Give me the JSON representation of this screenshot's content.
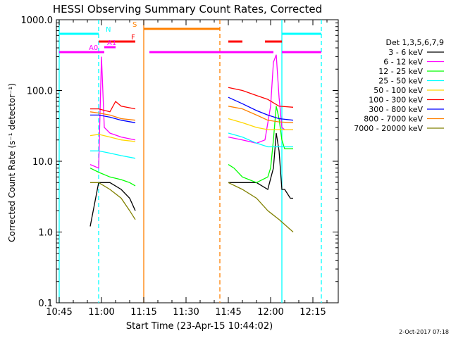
{
  "chart_data": {
    "type": "line",
    "title": "HESSI Observing Summary Count Rates, Corrected",
    "xlabel": "Start Time (23-Apr-15 10:44:02)",
    "ylabel": "Corrected Count Rate (s⁻¹ detector⁻¹)",
    "y_scale": "log",
    "ylim": [
      0.1,
      1000
    ],
    "xlim": [
      "10:44",
      "12:24"
    ],
    "x_ticks": [
      "10:45",
      "11:00",
      "11:15",
      "11:30",
      "11:45",
      "12:00",
      "12:15"
    ],
    "y_ticks": [
      "0.1",
      "1.0",
      "10.0",
      "100.0",
      "1000.0"
    ],
    "footer": "2-Oct-2017 07:18",
    "legend_title": "Det 1,3,5,6,7,9",
    "legend_position": "right",
    "series": [
      {
        "name": "3 - 6 keV",
        "color": "#000000",
        "x": [
          "10:56",
          "10:59",
          "11:03",
          "11:07",
          "11:10",
          "11:12",
          "11:45",
          "11:50",
          "11:55",
          "11:59",
          "12:01",
          "12:02",
          "12:03",
          "12:04",
          "12:05",
          "12:07",
          "12:08"
        ],
        "values": [
          1.2,
          5,
          5,
          4,
          3,
          2,
          5,
          5,
          5,
          4,
          8,
          25,
          14,
          4,
          4,
          3,
          3
        ]
      },
      {
        "name": "6 - 12 keV",
        "color": "#ff00ff",
        "x": [
          "10:56",
          "10:59",
          "11:00",
          "11:01",
          "11:03",
          "11:07",
          "11:12",
          "11:45",
          "11:50",
          "11:55",
          "11:58",
          "12:00",
          "12:01",
          "12:02",
          "12:03",
          "12:04",
          "12:05",
          "12:07",
          "12:08"
        ],
        "values": [
          9,
          8,
          300,
          30,
          25,
          22,
          20,
          22,
          20,
          18,
          20,
          60,
          250,
          320,
          80,
          30,
          28,
          28,
          28
        ]
      },
      {
        "name": "12 - 25 keV",
        "color": "#00ff00",
        "x": [
          "10:56",
          "10:59",
          "11:03",
          "11:07",
          "11:10",
          "11:12",
          "11:45",
          "11:47",
          "11:50",
          "11:55",
          "11:59",
          "12:00",
          "12:01",
          "12:02",
          "12:03",
          "12:04",
          "12:05",
          "12:07",
          "12:08"
        ],
        "values": [
          8,
          7,
          6,
          5.5,
          5,
          4.5,
          9,
          8,
          6,
          5,
          6,
          8,
          20,
          60,
          40,
          20,
          15,
          15,
          15
        ]
      },
      {
        "name": "25 - 50 keV",
        "color": "#00ffff",
        "x": [
          "10:56",
          "10:59",
          "11:03",
          "11:07",
          "11:12",
          "11:45",
          "11:50",
          "11:55",
          "11:59",
          "12:03",
          "12:08"
        ],
        "values": [
          14,
          14,
          13,
          12,
          11,
          25,
          22,
          18,
          16,
          16,
          16
        ]
      },
      {
        "name": "50 - 100 keV",
        "color": "#ffd700",
        "x": [
          "10:56",
          "10:59",
          "11:03",
          "11:07",
          "11:12",
          "11:45",
          "11:50",
          "11:55",
          "11:59",
          "12:03",
          "12:08"
        ],
        "values": [
          23,
          24,
          22,
          20,
          19,
          40,
          35,
          30,
          28,
          28,
          28
        ]
      },
      {
        "name": "100 - 300 keV",
        "color": "#ff0000",
        "x": [
          "10:56",
          "10:59",
          "11:03",
          "11:05",
          "11:07",
          "11:12",
          "11:45",
          "11:50",
          "11:55",
          "11:59",
          "12:03",
          "12:08"
        ],
        "values": [
          55,
          55,
          50,
          70,
          60,
          55,
          110,
          100,
          85,
          75,
          60,
          58
        ]
      },
      {
        "name": "300 - 800 keV",
        "color": "#0000ff",
        "x": [
          "10:56",
          "10:59",
          "11:03",
          "11:07",
          "11:12",
          "11:45",
          "11:50",
          "11:55",
          "11:59",
          "12:03",
          "12:08"
        ],
        "values": [
          45,
          45,
          42,
          38,
          35,
          80,
          65,
          52,
          45,
          40,
          38
        ]
      },
      {
        "name": "800 - 7000 keV",
        "color": "#ff8000",
        "x": [
          "10:56",
          "10:59",
          "11:03",
          "11:07",
          "11:12",
          "11:45",
          "11:50",
          "11:55",
          "11:59",
          "12:03",
          "12:08"
        ],
        "values": [
          50,
          48,
          45,
          40,
          38,
          60,
          55,
          45,
          38,
          36,
          35
        ]
      },
      {
        "name": "7000 - 20000 keV",
        "color": "#808000",
        "x": [
          "10:56",
          "10:59",
          "11:03",
          "11:07",
          "11:10",
          "11:12",
          "11:45",
          "11:50",
          "11:55",
          "11:59",
          "12:03",
          "12:08"
        ],
        "values": [
          5,
          5,
          4,
          3,
          2,
          1.5,
          5,
          4,
          3,
          2,
          1.5,
          1
        ]
      }
    ],
    "state_bars": [
      {
        "label": "N",
        "color": "#00ffff",
        "segments": [
          [
            "10:45",
            "10:59"
          ],
          [
            "12:04",
            "12:18"
          ]
        ]
      },
      {
        "label": "S",
        "color": "#ff8000",
        "segments": [
          [
            "11:15",
            "11:42"
          ]
        ]
      },
      {
        "label": "F",
        "color": "#ff0000",
        "segments": [
          [
            "10:59",
            "11:12"
          ],
          [
            "11:45",
            "11:50"
          ],
          [
            "11:58",
            "12:04"
          ]
        ]
      },
      {
        "label": "A0",
        "color": "#ff00ff",
        "segments": [
          [
            "10:45",
            "11:01"
          ],
          [
            "11:17",
            "12:01"
          ],
          [
            "12:04",
            "12:18"
          ]
        ]
      },
      {
        "label": "A1",
        "color": "#ff00ff",
        "segments": [
          [
            "11:01",
            "11:05"
          ]
        ]
      }
    ],
    "vlines": [
      {
        "x": "10:45",
        "color": "#00ffff",
        "style": "solid"
      },
      {
        "x": "10:59",
        "color": "#00ffff",
        "style": "dashed"
      },
      {
        "x": "11:15",
        "color": "#ff8000",
        "style": "solid"
      },
      {
        "x": "11:42",
        "color": "#ff8000",
        "style": "dashed"
      },
      {
        "x": "12:04",
        "color": "#00ffff",
        "style": "solid"
      },
      {
        "x": "12:18",
        "color": "#00ffff",
        "style": "dashed"
      }
    ]
  }
}
